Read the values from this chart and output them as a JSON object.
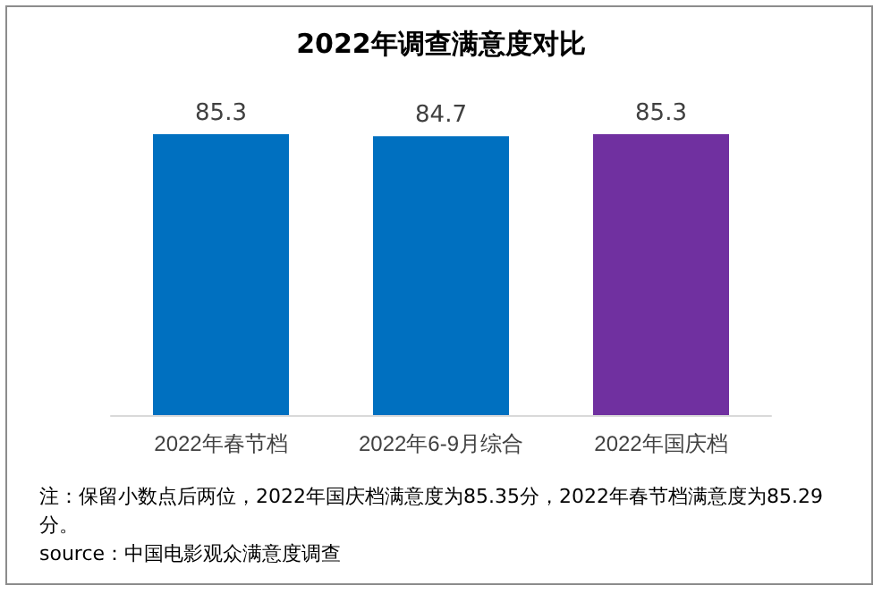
{
  "chart_data": {
    "type": "bar",
    "title": "2022年调查满意度对比",
    "categories": [
      "2022年春节档",
      "2022年6-9月综合",
      "2022年国庆档"
    ],
    "values": [
      85.3,
      84.7,
      85.3
    ],
    "colors": [
      "#0070c0",
      "#0070c0",
      "#7030a0"
    ],
    "tick_labels": "x",
    "data_labels": true,
    "annotations": [
      "注：保留小数点后两位，2022年国庆档满意度为85.35分，2022年春节档满意度为85.29分。",
      "source：中国电影观众满意度调查"
    ]
  }
}
